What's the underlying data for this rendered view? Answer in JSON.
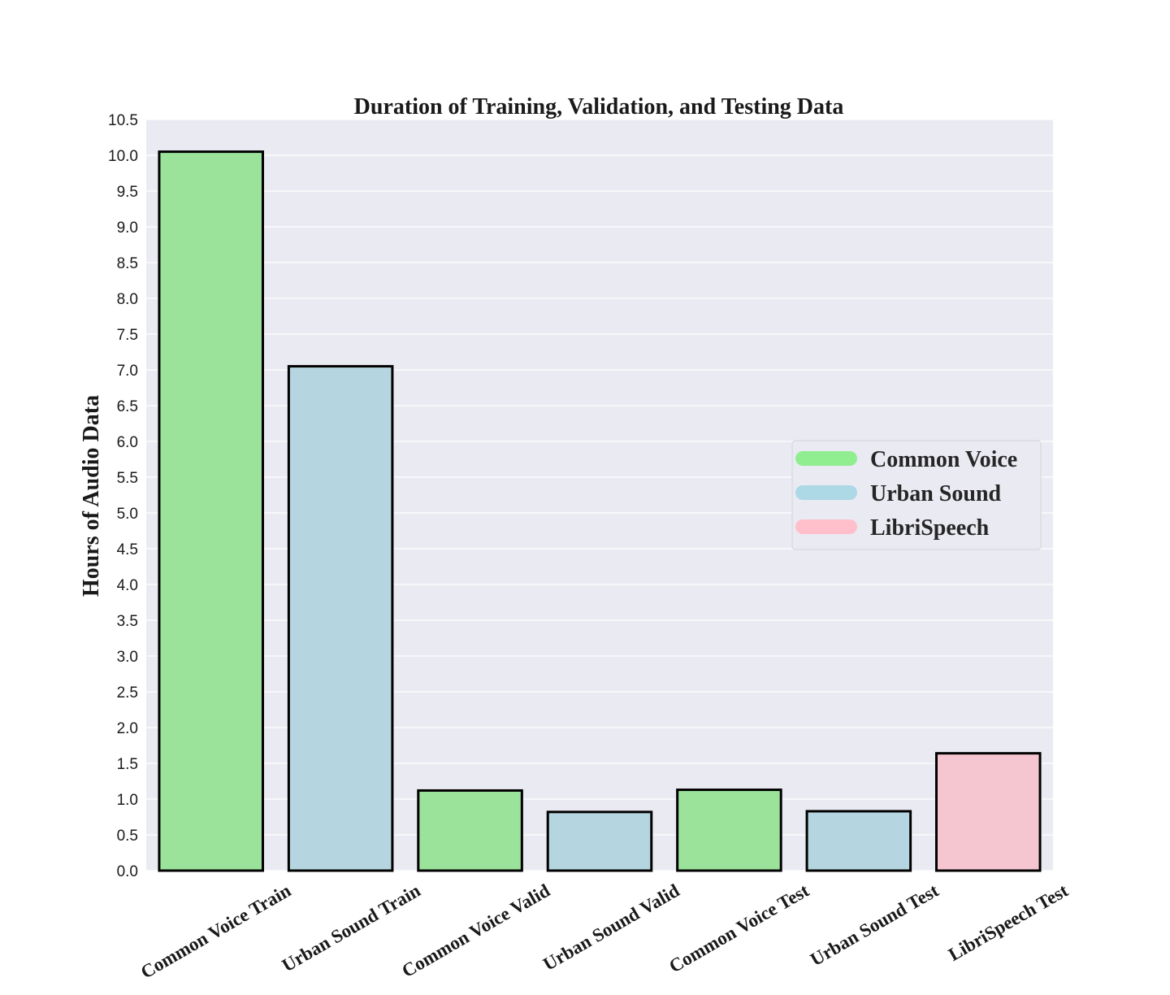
{
  "chart_data": {
    "type": "bar",
    "title": "Duration of Training, Validation, and Testing Data",
    "xlabel": "",
    "ylabel": "Hours of Audio Data",
    "ylim": [
      0,
      10.5
    ],
    "ytick_step": 0.5,
    "yticks": [
      "0.0",
      "0.5",
      "1.0",
      "1.5",
      "2.0",
      "2.5",
      "3.0",
      "3.5",
      "4.0",
      "4.5",
      "5.0",
      "5.5",
      "6.0",
      "6.5",
      "7.0",
      "7.5",
      "8.0",
      "8.5",
      "9.0",
      "9.5",
      "10.0",
      "10.5"
    ],
    "grid": true,
    "categories": [
      "Common Voice Train",
      "Urban Sound Train",
      "Common Voice Valid",
      "Urban Sound Valid",
      "Common Voice Test",
      "Urban Sound Test",
      "LibriSpeech Test"
    ],
    "values": [
      10.05,
      7.05,
      1.12,
      0.82,
      1.13,
      0.83,
      1.64
    ],
    "bar_series": [
      "Common Voice",
      "Urban Sound",
      "Common Voice",
      "Urban Sound",
      "Common Voice",
      "Urban Sound",
      "LibriSpeech"
    ],
    "legend": {
      "placement": "center-right",
      "entries": [
        {
          "label": "Common Voice",
          "color": "#90ee90"
        },
        {
          "label": "Urban Sound",
          "color": "#add8e6"
        },
        {
          "label": "LibriSpeech",
          "color": "#ffc0cb"
        }
      ]
    },
    "colors": {
      "Common Voice": "#9be29b",
      "Urban Sound": "#b5d6e0",
      "LibriSpeech": "#f6c6d0",
      "plot_background": "#eaeaf2",
      "grid": "#ffffff",
      "bar_edge": "#000000"
    }
  }
}
